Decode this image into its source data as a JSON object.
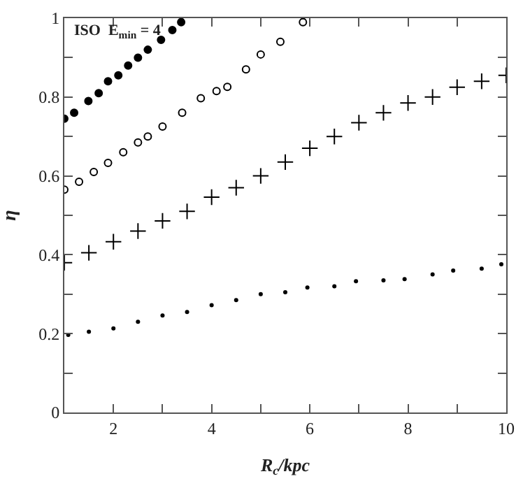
{
  "chart_data": {
    "type": "scatter",
    "xlabel": "R$_{c}$/kpc",
    "ylabel": "η",
    "annotations": [
      "ISO  E$_{min}$ = 4"
    ],
    "xlim": [
      1,
      10
    ],
    "xticks": [
      {
        "value": 1,
        "label": null
      },
      2,
      {
        "value": 3,
        "label": null
      },
      4,
      {
        "value": 5,
        "label": null
      },
      6,
      {
        "value": 7,
        "label": null
      },
      8,
      {
        "value": 9,
        "label": null
      },
      10
    ],
    "ylim": [
      0,
      1
    ],
    "yticks": [
      0,
      {
        "value": 0.1,
        "label": null
      },
      0.2,
      {
        "value": 0.3,
        "label": null
      },
      0.4,
      {
        "value": 0.5,
        "label": null
      },
      0.6,
      {
        "value": 0.7,
        "label": null
      },
      0.8,
      {
        "value": 0.9,
        "label": null
      },
      1
    ],
    "series": [
      {
        "color": "#000000",
        "marker": "circle",
        "x": [
          1.0,
          1.2,
          1.49,
          1.7,
          1.89,
          2.1,
          2.3,
          2.5,
          2.7,
          2.97,
          3.2,
          3.38
        ],
        "values": [
          0.745,
          0.76,
          0.79,
          0.81,
          0.84,
          0.855,
          0.88,
          0.9,
          0.92,
          0.945,
          0.97,
          0.99
        ]
      },
      {
        "color": "#000000",
        "marker": "circle-open",
        "x": [
          1.0,
          1.3,
          1.6,
          1.89,
          2.2,
          2.5,
          2.7,
          3.0,
          3.4,
          3.78,
          4.1,
          4.32,
          4.7,
          5.0,
          5.4,
          5.86
        ],
        "values": [
          0.565,
          0.585,
          0.61,
          0.633,
          0.66,
          0.685,
          0.7,
          0.725,
          0.76,
          0.797,
          0.815,
          0.826,
          0.87,
          0.908,
          0.94,
          0.99
        ]
      },
      {
        "color": "#000000",
        "marker": "cross",
        "x": [
          1.0,
          1.5,
          2.0,
          2.5,
          3.0,
          3.5,
          4.0,
          4.5,
          5.0,
          5.5,
          6.0,
          6.5,
          7.0,
          7.5,
          8.0,
          8.5,
          9.0,
          9.5,
          10.0
        ],
        "values": [
          0.38,
          0.405,
          0.433,
          0.46,
          0.486,
          0.51,
          0.546,
          0.57,
          0.6,
          0.635,
          0.67,
          0.7,
          0.735,
          0.76,
          0.785,
          0.8,
          0.825,
          0.84,
          0.855
        ]
      },
      {
        "color": "#000000",
        "marker": "dot",
        "x": [
          1.08,
          1.5,
          2.0,
          2.5,
          3.0,
          3.5,
          4.0,
          4.5,
          5.0,
          5.5,
          5.95,
          6.5,
          6.94,
          7.5,
          7.93,
          8.5,
          8.92,
          9.5,
          9.9
        ],
        "values": [
          0.197,
          0.205,
          0.213,
          0.23,
          0.246,
          0.255,
          0.272,
          0.285,
          0.3,
          0.305,
          0.317,
          0.32,
          0.333,
          0.335,
          0.338,
          0.35,
          0.36,
          0.365,
          0.376
        ]
      }
    ]
  }
}
